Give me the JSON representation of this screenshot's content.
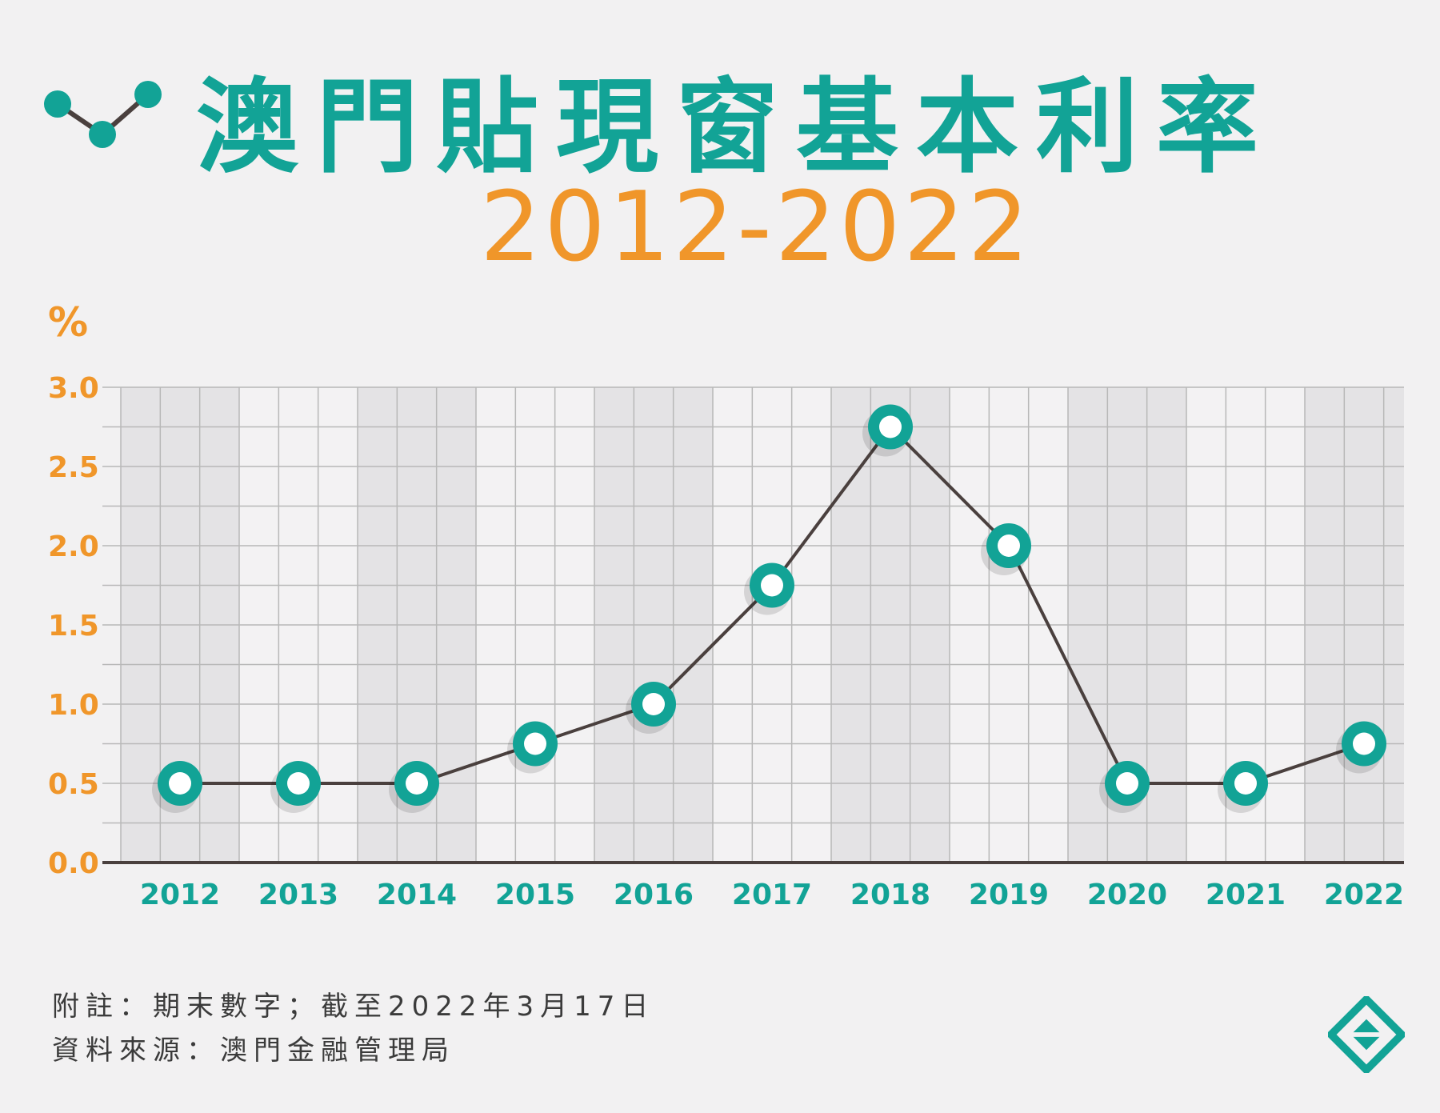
{
  "header": {
    "title": "澳門貼現窗基本利率",
    "subtitle": "2012-2022"
  },
  "colors": {
    "accent_teal": "#12a396",
    "accent_orange": "#f0962a",
    "line": "#4a403e",
    "grid": "#b8b8b8",
    "band_dark": "#e4e3e5",
    "band_light": "#f3f2f3"
  },
  "chart_data": {
    "type": "line",
    "title": "澳門貼現窗基本利率",
    "subtitle": "2012-2022",
    "ylabel": "%",
    "xlabel": "",
    "categories": [
      "2012",
      "2013",
      "2014",
      "2015",
      "2016",
      "2017",
      "2018",
      "2019",
      "2020",
      "2021",
      "2022"
    ],
    "series": [
      {
        "values": [
          0.5,
          0.5,
          0.5,
          0.75,
          1.0,
          1.75,
          2.75,
          2.0,
          0.5,
          0.5,
          0.75
        ]
      }
    ],
    "ylim": [
      0,
      3.0
    ],
    "yticks": [
      "0.0",
      "0.5",
      "1.0",
      "1.5",
      "2.0",
      "2.5",
      "3.0"
    ],
    "grid": true,
    "legend": "none"
  },
  "notes": {
    "line1": "附註：期末數字；截至2022年3月17日",
    "line2": "資料來源：澳門金融管理局"
  },
  "icons": {
    "header_icon": "line-chart-icon",
    "brand_logo": "amcm-logo-icon"
  }
}
